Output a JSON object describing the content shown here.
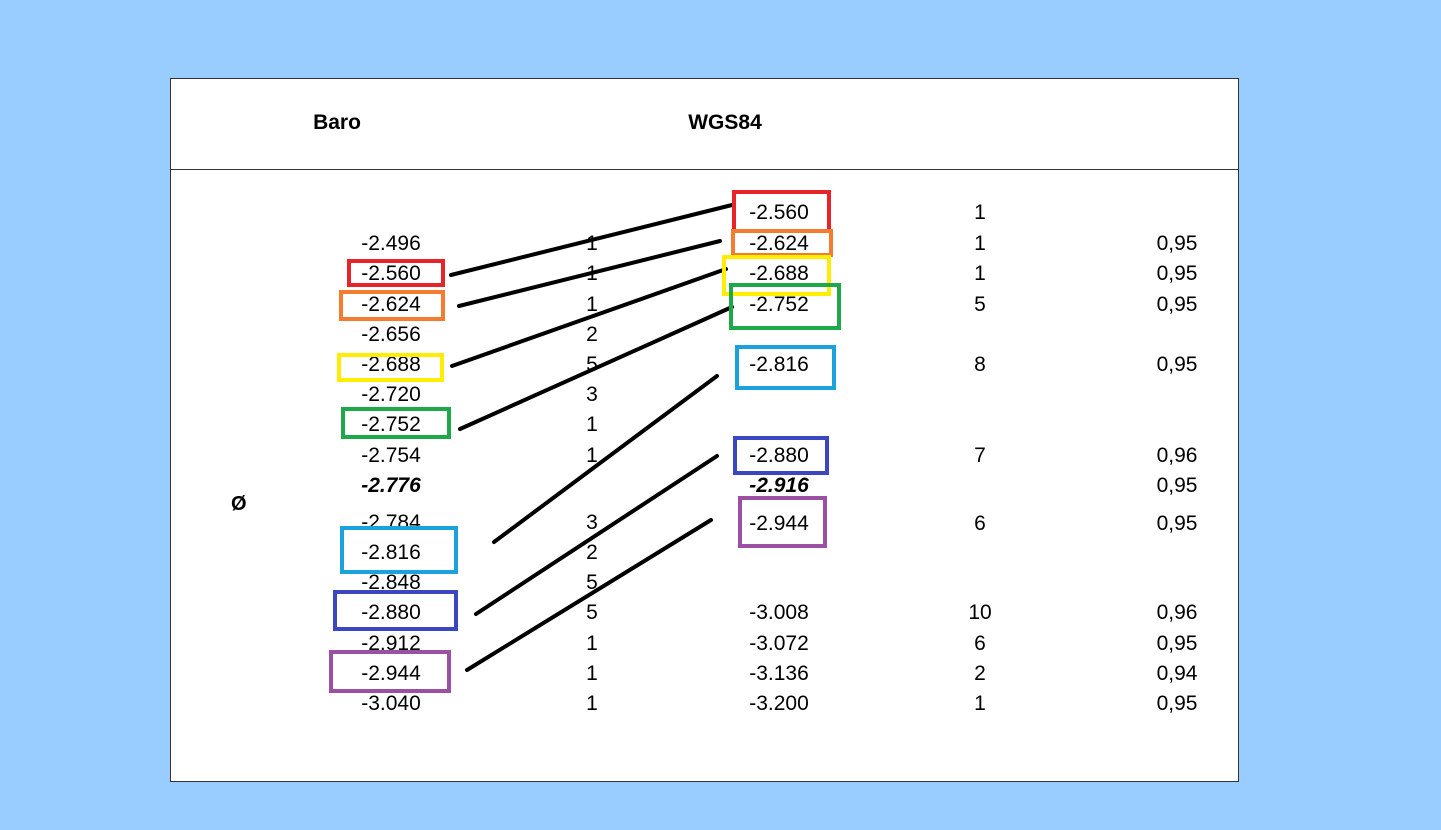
{
  "headers": {
    "baro": "Baro",
    "wgs84": "WGS84"
  },
  "average_symbol": "Ø",
  "baro_values": [
    "-2.496",
    "-2.560",
    "-2.624",
    "-2.656",
    "-2.688",
    "-2.720",
    "-2.752",
    "-2.754",
    "-2.776",
    "-2.784",
    "-2.816",
    "-2.848",
    "-2.880",
    "-2.912",
    "-2.944",
    "-3.040"
  ],
  "baro_counts": [
    "1",
    "1",
    "1",
    "2",
    "5",
    "3",
    "1",
    "1",
    "3",
    "2",
    "5",
    "5",
    "1",
    "1",
    "1"
  ],
  "wgs84_values": [
    "-2.560",
    "-2.624",
    "-2.688",
    "-2.752",
    "-2.816",
    "-2.880",
    "-2.916",
    "-2.944",
    "-3.008",
    "-3.072",
    "-3.136",
    "-3.200"
  ],
  "wgs84_counts": [
    "1",
    "1",
    "1",
    "5",
    "8",
    "7",
    "6",
    "10",
    "6",
    "2",
    "1"
  ],
  "factors": [
    "0,95",
    "0,95",
    "0,95",
    "0,95",
    "0,96",
    "0,95",
    "0,95",
    "0,96",
    "0,95",
    "0,94",
    "0,95"
  ],
  "highlight_colors": {
    "red": "#e8242b",
    "orange": "#f47c30",
    "yellow": "#ffee00",
    "green": "#1fa84a",
    "cyan": "#1ba1dc",
    "blue": "#3b47c0",
    "purple": "#9b50a4"
  }
}
